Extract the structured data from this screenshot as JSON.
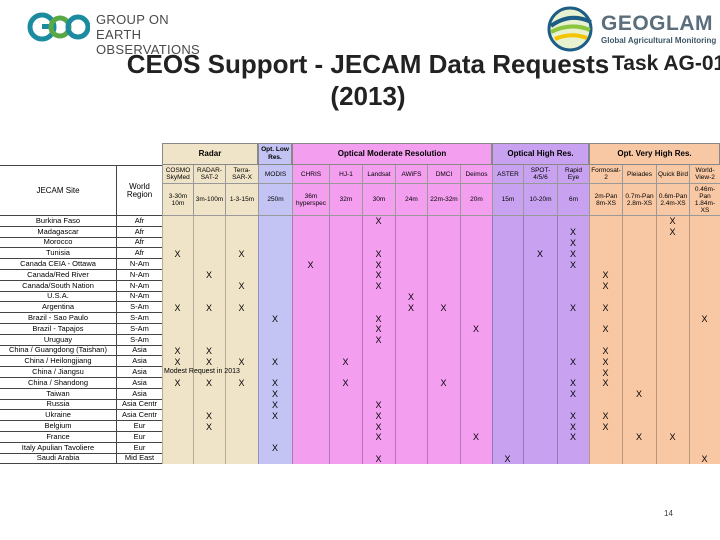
{
  "header": {
    "geo_logo_line1": "GROUP ON",
    "geo_logo_line2": "EARTH OBSERVATIONS",
    "geoglam_name": "GEOGLAM",
    "geoglam_sub": "Global Agricultural Monitoring",
    "title_line1": "CEOS Support - JECAM Data Requests",
    "title_line2": "(2013)",
    "task": "Task AG-01"
  },
  "colors": {
    "radar": "#f0e4c8",
    "opt_low": "#c4c4f4",
    "opt_moderate": "#f49ef0",
    "opt_high": "#c8a2f0",
    "opt_very_high": "#f8c8a4",
    "header_group": "#f0f0f0",
    "site_col": "#ffffff"
  },
  "table": {
    "site_header": "JECAM Site",
    "region_header": "World Region",
    "groups": [
      {
        "label": "Radar",
        "span": 3
      },
      {
        "label": "Opt. Low Res.",
        "span": 1
      },
      {
        "label": "Optical Moderate Resolution",
        "span": 6
      },
      {
        "label": "Optical High Res.",
        "span": 3
      },
      {
        "label": "Opt. Very High Res.",
        "span": 4
      }
    ],
    "sensors": [
      "COSMO SkyMed",
      "RADAR-SAT-2",
      "Terra-SAR-X",
      "MODIS",
      "CHRIS",
      "HJ-1",
      "Landsat",
      "AWiFS",
      "DMCI",
      "Deimos",
      "ASTER",
      "SPOT-4/5/6",
      "Rapid Eye",
      "Formosat-2",
      "Pleiades",
      "Quick Bird",
      "World-View-2"
    ],
    "resolutions": [
      "3-30m 10m",
      "3m-100m",
      "1-3-15m",
      "250m",
      "36m hyperspec",
      "32m",
      "30m",
      "24m",
      "22m-32m",
      "20m",
      "15m",
      "10-20m",
      "6m",
      "2m-Pan 8m-XS",
      "0.7m-Pan 2.8m-XS",
      "0.6m-Pan 2.4m-XS",
      "0.46m-Pan 1.84m-XS"
    ],
    "note": "Modest Request in 2013",
    "rows": [
      {
        "site": "Burkina Faso",
        "region": "Afr",
        "marks": [
          6,
          15
        ]
      },
      {
        "site": "Madagascar",
        "region": "Afr",
        "marks": [
          12,
          15
        ]
      },
      {
        "site": "Morocco",
        "region": "Afr",
        "marks": [
          12
        ]
      },
      {
        "site": "Tunisia",
        "region": "Afr",
        "marks": [
          0,
          2,
          6,
          11,
          12
        ]
      },
      {
        "site": "Canada CEIA - Ottawa",
        "region": "N-Am",
        "marks": [
          4,
          6,
          12
        ]
      },
      {
        "site": "Canada/Red River",
        "region": "N-Am",
        "marks": [
          1,
          6,
          13
        ]
      },
      {
        "site": "Canada/South Nation",
        "region": "N-Am",
        "marks": [
          2,
          6,
          13
        ]
      },
      {
        "site": "U.S.A.",
        "region": "N-Am",
        "marks": [
          7
        ]
      },
      {
        "site": "Argentina",
        "region": "S-Am",
        "marks": [
          0,
          1,
          2,
          7,
          8,
          12,
          13
        ]
      },
      {
        "site": "Brazil - Sao Paulo",
        "region": "S-Am",
        "marks": [
          3,
          6,
          16
        ]
      },
      {
        "site": "Brazil - Tapajos",
        "region": "S-Am",
        "marks": [
          6,
          9,
          13
        ]
      },
      {
        "site": "Uruguay",
        "region": "S-Am",
        "marks": [
          6
        ]
      },
      {
        "site": "China / Guangdong (Taishan)",
        "region": "Asia",
        "marks": [
          0,
          1,
          13
        ]
      },
      {
        "site": "China / Heilongjiang",
        "region": "Asia",
        "marks": [
          0,
          1,
          2,
          3,
          5,
          12,
          13
        ]
      },
      {
        "site": "China / Jiangsu",
        "region": "Asia",
        "marks": [
          13
        ]
      },
      {
        "site": "China / Shandong",
        "region": "Asia",
        "marks": [
          0,
          1,
          2,
          3,
          5,
          8,
          12,
          13
        ]
      },
      {
        "site": "Taiwan",
        "region": "Asia",
        "marks": [
          3,
          12,
          14
        ]
      },
      {
        "site": "Russia",
        "region": "Asia Centr",
        "marks": [
          3,
          6
        ]
      },
      {
        "site": "Ukraine",
        "region": "Asia Centr",
        "marks": [
          1,
          3,
          6,
          12,
          13
        ]
      },
      {
        "site": "Belgium",
        "region": "Eur",
        "marks": [
          1,
          6,
          12,
          13
        ]
      },
      {
        "site": "France",
        "region": "Eur",
        "marks": [
          6,
          9,
          12,
          14,
          15
        ]
      },
      {
        "site": "Italy Apulian Tavoliere",
        "region": "Eur",
        "marks": [
          3
        ]
      },
      {
        "site": "Saudi Arabia",
        "region": "Mid East",
        "marks": [
          6,
          10,
          16
        ]
      }
    ]
  },
  "page_number": "14"
}
